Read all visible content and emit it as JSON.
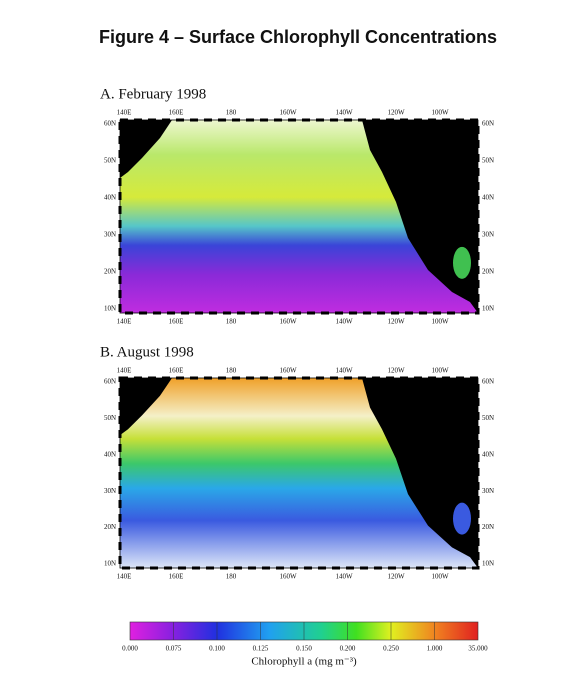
{
  "title": "Figure 4 – Surface Chlorophyll Concentrations",
  "panels": [
    {
      "label": "A. February 1998",
      "top_ticks": [
        "140E",
        "160E",
        "180",
        "160W",
        "140W",
        "120W",
        "100W"
      ],
      "bottom_ticks": [
        "140E",
        "160E",
        "180",
        "160W",
        "140W",
        "120W",
        "100W"
      ],
      "left_ticks": [
        "60N",
        "50N",
        "40N",
        "30N",
        "20N",
        "10N"
      ],
      "right_ticks": [
        "60N",
        "50N",
        "40N",
        "30N",
        "20N",
        "10N"
      ]
    },
    {
      "label": "B. August 1998",
      "top_ticks": [
        "140E",
        "160E",
        "180",
        "160W",
        "140W",
        "120W",
        "100W"
      ],
      "bottom_ticks": [
        "140E",
        "160E",
        "180",
        "160W",
        "140W",
        "120W",
        "100W"
      ],
      "left_ticks": [
        "60N",
        "50N",
        "40N",
        "30N",
        "20N",
        "10N"
      ],
      "right_ticks": [
        "60N",
        "50N",
        "40N",
        "30N",
        "20N",
        "10N"
      ]
    }
  ],
  "colorbar": {
    "ticks": [
      "0.000",
      "0.075",
      "0.100",
      "0.125",
      "0.150",
      "0.200",
      "0.250",
      "1.000",
      "35.000"
    ],
    "label": "Chlorophyll a (mg m⁻³)"
  }
}
